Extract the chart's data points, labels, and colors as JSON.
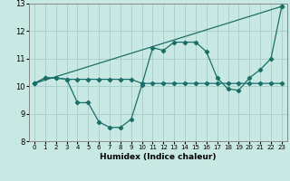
{
  "xlabel": "Humidex (Indice chaleur)",
  "xlim": [
    -0.5,
    23.5
  ],
  "ylim": [
    8,
    13
  ],
  "yticks": [
    8,
    9,
    10,
    11,
    12,
    13
  ],
  "xticks": [
    0,
    1,
    2,
    3,
    4,
    5,
    6,
    7,
    8,
    9,
    10,
    11,
    12,
    13,
    14,
    15,
    16,
    17,
    18,
    19,
    20,
    21,
    22,
    23
  ],
  "bg_color": "#c8e8e4",
  "line_color": "#1a7068",
  "series": [
    {
      "x": [
        0,
        1,
        2,
        3,
        4,
        5,
        6,
        7,
        8,
        9,
        10,
        11,
        12,
        13,
        14,
        15,
        16,
        17,
        18,
        19,
        20,
        21,
        22,
        23
      ],
      "y": [
        10.1,
        10.3,
        10.3,
        10.25,
        10.25,
        10.25,
        10.25,
        10.25,
        10.25,
        10.25,
        10.1,
        10.1,
        10.1,
        10.1,
        10.1,
        10.1,
        10.1,
        10.1,
        10.1,
        10.1,
        10.1,
        10.1,
        10.1,
        10.1
      ]
    },
    {
      "x": [
        0,
        1,
        2,
        3,
        4,
        5,
        6,
        7,
        8,
        9,
        10,
        11,
        12,
        13,
        14,
        15,
        16,
        17,
        18,
        19,
        20,
        21,
        22,
        23
      ],
      "y": [
        10.1,
        10.3,
        10.3,
        10.25,
        9.4,
        9.4,
        8.7,
        8.5,
        8.5,
        8.8,
        10.05,
        11.4,
        11.3,
        11.6,
        11.6,
        11.6,
        11.25,
        10.3,
        9.9,
        9.85,
        10.3,
        10.6,
        11.0,
        12.9
      ]
    },
    {
      "x": [
        0,
        23
      ],
      "y": [
        10.1,
        12.9
      ]
    }
  ]
}
